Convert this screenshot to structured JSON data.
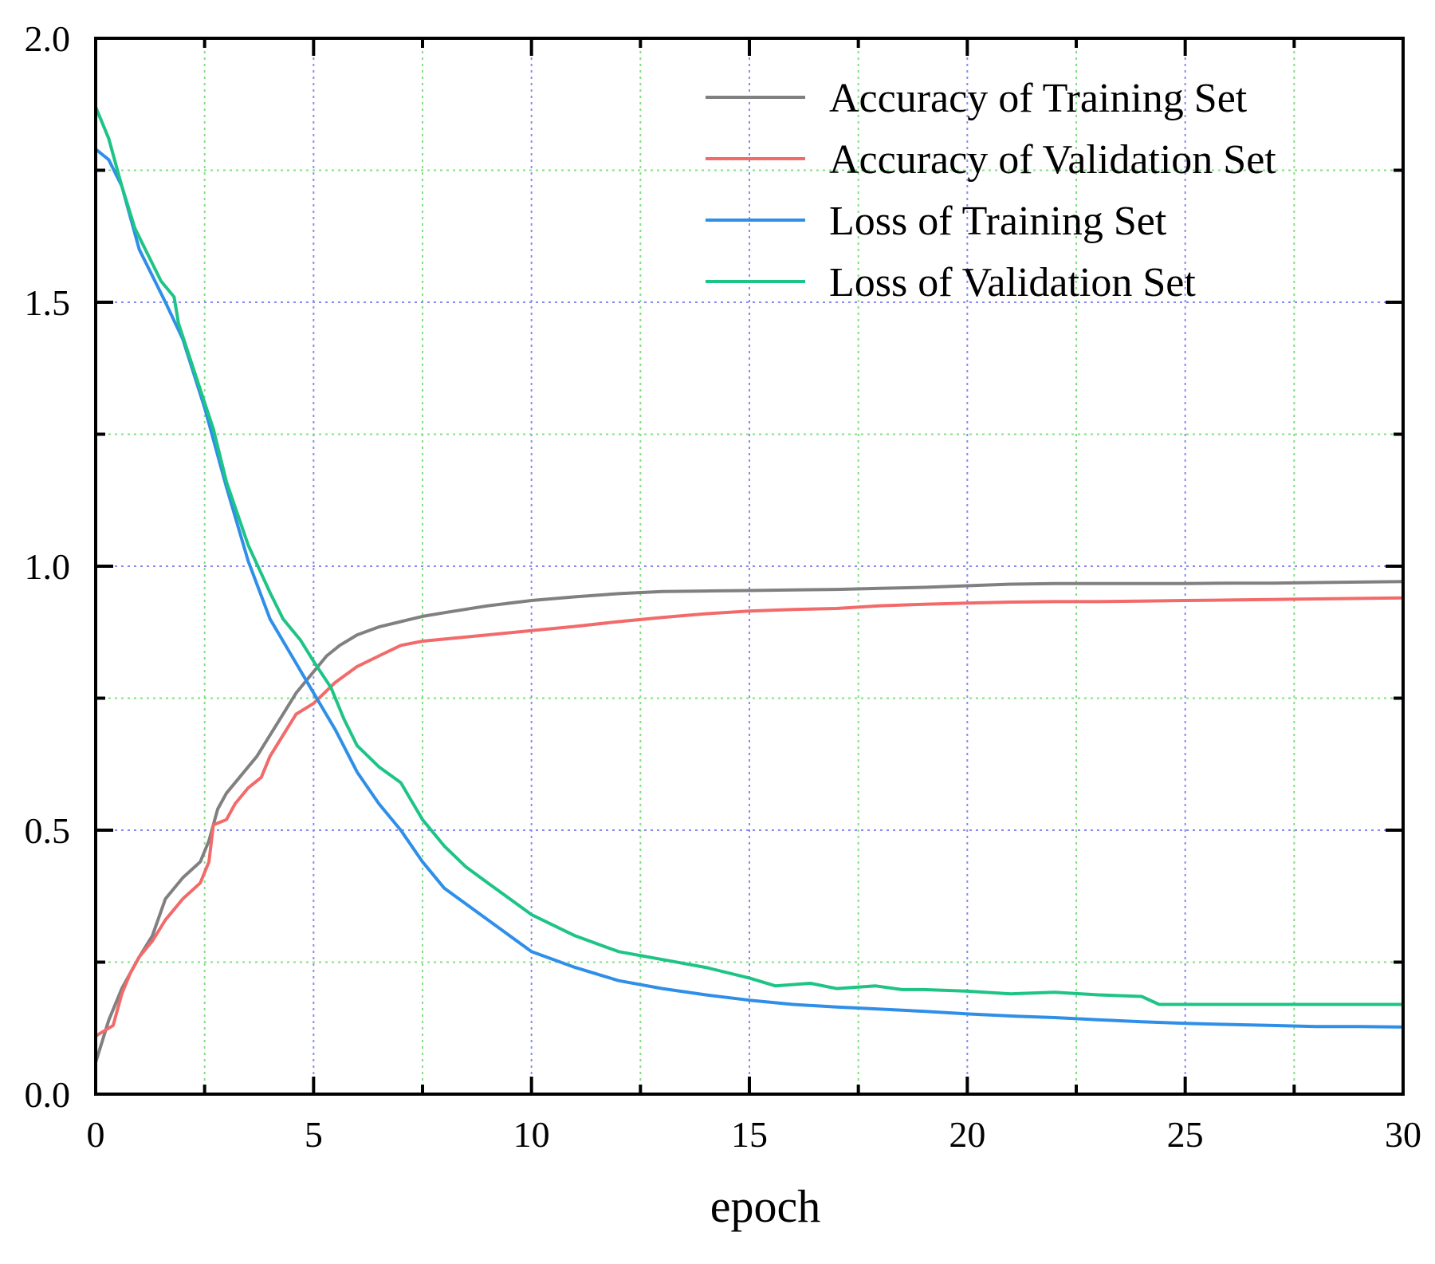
{
  "chart_data": {
    "type": "line",
    "title": "",
    "xlabel": "epoch",
    "ylabel": "",
    "xlim": [
      0,
      30
    ],
    "ylim": [
      0,
      2.0
    ],
    "xticks": [
      0,
      5,
      10,
      15,
      20,
      25,
      30
    ],
    "xtick_labels": [
      "0",
      "5",
      "10",
      "15",
      "20",
      "25",
      "30"
    ],
    "yticks": [
      0,
      0.5,
      1.0,
      1.5,
      2.0
    ],
    "ytick_labels": [
      "0.0",
      "0.5",
      "1.0",
      "1.5",
      "2.0"
    ],
    "grid": true,
    "legend_position": "top-right",
    "series": [
      {
        "name": "Accuracy of Training Set",
        "color": "#808080",
        "x": [
          0,
          0.3,
          0.6,
          1.0,
          1.3,
          1.6,
          2.0,
          2.4,
          2.6,
          2.8,
          3.0,
          3.3,
          3.7,
          4.0,
          4.3,
          4.6,
          5.0,
          5.3,
          5.6,
          6.0,
          6.5,
          7.0,
          7.5,
          8.0,
          9.0,
          10,
          11,
          12,
          13,
          14,
          15,
          16,
          17,
          18,
          19,
          20,
          21,
          22,
          23,
          24,
          25,
          26,
          27,
          28,
          29,
          30
        ],
        "y": [
          0.06,
          0.14,
          0.2,
          0.26,
          0.3,
          0.37,
          0.41,
          0.44,
          0.48,
          0.54,
          0.57,
          0.6,
          0.64,
          0.68,
          0.72,
          0.76,
          0.8,
          0.83,
          0.85,
          0.87,
          0.885,
          0.895,
          0.905,
          0.912,
          0.925,
          0.935,
          0.942,
          0.948,
          0.952,
          0.953,
          0.954,
          0.955,
          0.956,
          0.958,
          0.96,
          0.963,
          0.966,
          0.967,
          0.967,
          0.967,
          0.967,
          0.968,
          0.968,
          0.969,
          0.97,
          0.971
        ]
      },
      {
        "name": "Accuracy of Validation Set",
        "color": "#f26a6a",
        "x": [
          0,
          0.4,
          0.6,
          0.8,
          1.0,
          1.3,
          1.6,
          2.0,
          2.4,
          2.6,
          2.7,
          3.0,
          3.2,
          3.5,
          3.8,
          4.0,
          4.3,
          4.6,
          5.0,
          5.5,
          6.0,
          6.5,
          7.0,
          7.5,
          8.0,
          9.0,
          10,
          11,
          12,
          13,
          14,
          15,
          16,
          17,
          18,
          19,
          20,
          21,
          22,
          23,
          24,
          25,
          26,
          27,
          28,
          29,
          30
        ],
        "y": [
          0.11,
          0.13,
          0.19,
          0.23,
          0.26,
          0.29,
          0.33,
          0.37,
          0.4,
          0.44,
          0.51,
          0.52,
          0.55,
          0.58,
          0.6,
          0.64,
          0.68,
          0.72,
          0.74,
          0.78,
          0.81,
          0.83,
          0.85,
          0.858,
          0.862,
          0.87,
          0.878,
          0.886,
          0.895,
          0.903,
          0.91,
          0.915,
          0.918,
          0.92,
          0.925,
          0.928,
          0.93,
          0.932,
          0.933,
          0.933,
          0.934,
          0.935,
          0.936,
          0.937,
          0.938,
          0.939,
          0.94
        ]
      },
      {
        "name": "Loss of Training Set",
        "color": "#2f8fe8",
        "x": [
          0,
          0.3,
          0.6,
          1.0,
          1.3,
          1.6,
          2.0,
          2.5,
          3.0,
          3.5,
          4.0,
          4.5,
          5.0,
          5.5,
          6.0,
          6.5,
          7.0,
          7.5,
          8.0,
          9.0,
          10,
          11,
          12,
          13,
          14,
          15,
          16,
          17,
          18,
          19,
          20,
          21,
          22,
          23,
          24,
          25,
          26,
          27,
          28,
          29,
          30
        ],
        "y": [
          1.79,
          1.77,
          1.72,
          1.6,
          1.55,
          1.5,
          1.43,
          1.3,
          1.15,
          1.01,
          0.9,
          0.83,
          0.76,
          0.69,
          0.61,
          0.55,
          0.5,
          0.44,
          0.39,
          0.33,
          0.27,
          0.24,
          0.215,
          0.2,
          0.188,
          0.178,
          0.17,
          0.165,
          0.161,
          0.157,
          0.152,
          0.148,
          0.145,
          0.141,
          0.137,
          0.134,
          0.132,
          0.13,
          0.128,
          0.128,
          0.127
        ]
      },
      {
        "name": "Loss of Validation Set",
        "color": "#1ec486",
        "x": [
          0,
          0.3,
          0.6,
          0.9,
          1.2,
          1.5,
          1.8,
          1.9,
          2.3,
          2.7,
          3.0,
          3.5,
          4.0,
          4.3,
          4.7,
          5.0,
          5.4,
          5.7,
          6.0,
          6.5,
          7.0,
          7.5,
          8.0,
          8.5,
          9.0,
          10,
          11,
          12,
          13,
          14,
          15,
          15.6,
          16.4,
          17,
          17.9,
          18.5,
          19,
          20,
          21,
          22,
          23,
          24,
          24.4,
          25,
          26,
          27,
          28,
          29,
          30
        ],
        "y": [
          1.87,
          1.81,
          1.72,
          1.64,
          1.59,
          1.54,
          1.51,
          1.46,
          1.36,
          1.26,
          1.16,
          1.04,
          0.95,
          0.9,
          0.86,
          0.82,
          0.77,
          0.71,
          0.66,
          0.62,
          0.59,
          0.52,
          0.47,
          0.43,
          0.4,
          0.34,
          0.3,
          0.27,
          0.255,
          0.24,
          0.22,
          0.205,
          0.21,
          0.2,
          0.205,
          0.198,
          0.198,
          0.195,
          0.19,
          0.193,
          0.188,
          0.185,
          0.17,
          0.17,
          0.17,
          0.17,
          0.17,
          0.17,
          0.17
        ]
      }
    ]
  }
}
